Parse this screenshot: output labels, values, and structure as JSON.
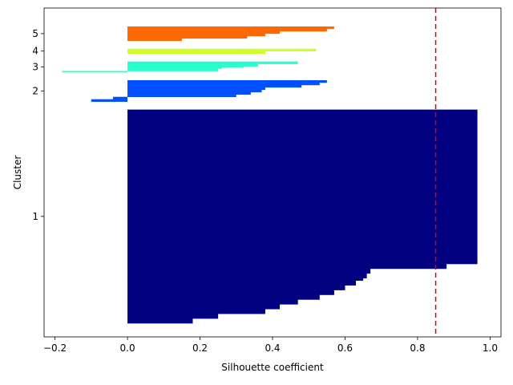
{
  "chart_data": {
    "type": "bar",
    "orientation": "horizontal",
    "xlabel": "Silhouette coefficient",
    "ylabel": "Cluster",
    "xlim": [
      -0.23,
      1.03
    ],
    "xticks": [
      -0.2,
      0.0,
      0.2,
      0.4,
      0.6,
      0.8,
      1.0
    ],
    "xtick_labels": [
      "−0.2",
      "0.0",
      "0.2",
      "0.4",
      "0.6",
      "0.8",
      "1.0"
    ],
    "yticks": [
      {
        "label": "1",
        "cluster": 1
      },
      {
        "label": "2",
        "cluster": 2
      },
      {
        "label": "3",
        "cluster": 3
      },
      {
        "label": "4",
        "cluster": 4
      },
      {
        "label": "5",
        "cluster": 5
      }
    ],
    "average_silhouette": 0.85,
    "average_line_color": "#dd0000",
    "series": [
      {
        "cluster": 1,
        "color": "#000080",
        "sorted_coefficients": [
          [
            0.18,
            2
          ],
          [
            0.25,
            2
          ],
          [
            0.38,
            2
          ],
          [
            0.42,
            2
          ],
          [
            0.47,
            2
          ],
          [
            0.53,
            2
          ],
          [
            0.57,
            2
          ],
          [
            0.6,
            2
          ],
          [
            0.63,
            2
          ],
          [
            0.65,
            1
          ],
          [
            0.66,
            2
          ],
          [
            0.67,
            2
          ],
          [
            0.88,
            2
          ],
          [
            0.965,
            65
          ]
        ]
      },
      {
        "cluster": 2,
        "color": "#0050ff",
        "sorted_coefficients": [
          [
            -0.1,
            1
          ],
          [
            -0.04,
            1
          ],
          [
            0.3,
            1
          ],
          [
            0.34,
            1
          ],
          [
            0.37,
            1
          ],
          [
            0.38,
            1
          ],
          [
            0.48,
            1
          ],
          [
            0.53,
            1
          ],
          [
            0.55,
            1
          ]
        ]
      },
      {
        "cluster": 3,
        "color": "#29ffce",
        "sorted_coefficients": [
          [
            -0.18,
            0.5
          ],
          [
            0.25,
            1
          ],
          [
            0.26,
            0.5
          ],
          [
            0.32,
            0.5
          ],
          [
            0.36,
            1
          ],
          [
            0.47,
            1
          ]
        ]
      },
      {
        "cluster": 4,
        "color": "#ceff29",
        "sorted_coefficients": [
          [
            0.38,
            1
          ],
          [
            0.52,
            1
          ]
        ]
      },
      {
        "cluster": 5,
        "color": "#ff6800",
        "sorted_coefficients": [
          [
            0.15,
            1
          ],
          [
            0.33,
            1
          ],
          [
            0.38,
            1
          ],
          [
            0.42,
            1
          ],
          [
            0.55,
            1
          ],
          [
            0.57,
            1
          ]
        ]
      }
    ]
  }
}
